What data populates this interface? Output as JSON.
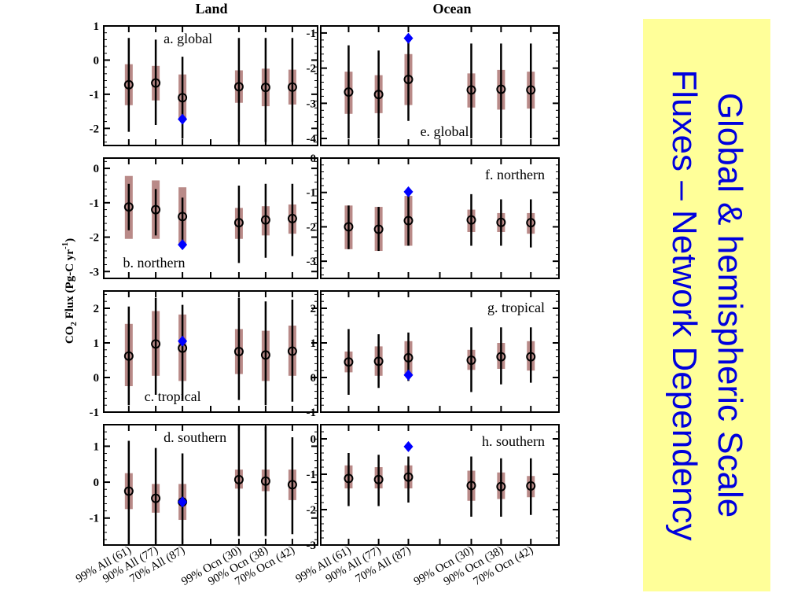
{
  "slide": {
    "title_lines": [
      "Global & hemispheric Scale",
      "Fluxes – Network Dependency"
    ],
    "title_color": "#0000dd",
    "title_bg": "#ffff99"
  },
  "chart_data": {
    "type": "errorbar-panels",
    "column_titles": [
      "Land",
      "Ocean"
    ],
    "ylabel_main": "CO",
    "ylabel_sub": "2",
    "ylabel_mid": " Flux (Pg-C yr",
    "ylabel_sup": "-1",
    "ylabel_end": ")",
    "categories": [
      "99% All (61)",
      "90% All (77)",
      "70% All (87)",
      "99% Ocn (30)",
      "90% Ocn (38)",
      "70% Ocn (42)"
    ],
    "colors": {
      "whisker": "#000000",
      "box": "#b98a88",
      "diamond": "#0000ff"
    },
    "panels": [
      {
        "label": "a. global",
        "label_pos": "top-left",
        "col": 0,
        "row": 0,
        "yticks": [
          1,
          0,
          -1,
          -2
        ],
        "ylim": [
          -2.5,
          1.0
        ],
        "points": [
          {
            "mean": -0.72,
            "box": [
              -1.32,
              -0.12
            ],
            "whisker": [
              -2.1,
              0.65
            ]
          },
          {
            "mean": -0.67,
            "box": [
              -1.18,
              -0.17
            ],
            "whisker": [
              -1.9,
              0.6
            ]
          },
          {
            "mean": -1.1,
            "box": [
              -1.75,
              -0.42
            ],
            "whisker": [
              -2.3,
              0.1
            ]
          },
          {
            "mean": -0.78,
            "box": [
              -1.25,
              -0.3
            ],
            "whisker": [
              -2.4,
              0.65
            ]
          },
          {
            "mean": -0.8,
            "box": [
              -1.35,
              -0.25
            ],
            "whisker": [
              -2.4,
              0.65
            ]
          },
          {
            "mean": -0.79,
            "box": [
              -1.3,
              -0.28
            ],
            "whisker": [
              -2.4,
              0.65
            ]
          }
        ],
        "diamonds": [
          {
            "index": 2,
            "value": -1.73
          }
        ]
      },
      {
        "label": "b. northern",
        "label_pos": "bottom-left",
        "col": 0,
        "row": 1,
        "yticks": [
          0,
          -1,
          -2,
          -3
        ],
        "ylim": [
          -3.2,
          0.3
        ],
        "points": [
          {
            "mean": -1.12,
            "box": [
              -2.05,
              -0.22
            ],
            "whisker": [
              -1.8,
              -0.45
            ]
          },
          {
            "mean": -1.2,
            "box": [
              -2.05,
              -0.35
            ],
            "whisker": [
              -1.95,
              -0.6
            ]
          },
          {
            "mean": -1.4,
            "box": [
              -2.2,
              -0.55
            ],
            "whisker": [
              -2.1,
              -0.85
            ]
          },
          {
            "mean": -1.58,
            "box": [
              -2.05,
              -1.15
            ],
            "whisker": [
              -2.75,
              -0.5
            ]
          },
          {
            "mean": -1.5,
            "box": [
              -1.95,
              -1.1
            ],
            "whisker": [
              -2.6,
              -0.45
            ]
          },
          {
            "mean": -1.46,
            "box": [
              -1.9,
              -1.05
            ],
            "whisker": [
              -2.55,
              -0.45
            ]
          }
        ],
        "diamonds": [
          {
            "index": 2,
            "value": -2.22
          }
        ]
      },
      {
        "label": "c. tropical",
        "label_pos": "bottom-left",
        "col": 0,
        "row": 2,
        "yticks": [
          2,
          1,
          0,
          -1
        ],
        "ylim": [
          -1.0,
          2.5
        ],
        "points": [
          {
            "mean": 0.62,
            "box": [
              -0.25,
              1.55
            ],
            "whisker": [
              -0.8,
              2.05
            ]
          },
          {
            "mean": 0.97,
            "box": [
              0.05,
              1.92
            ],
            "whisker": [
              -0.5,
              2.3
            ]
          },
          {
            "mean": 0.85,
            "box": [
              -0.1,
              1.82
            ],
            "whisker": [
              -0.65,
              2.1
            ]
          },
          {
            "mean": 0.75,
            "box": [
              0.1,
              1.4
            ],
            "whisker": [
              -0.65,
              2.3
            ]
          },
          {
            "mean": 0.65,
            "box": [
              -0.1,
              1.35
            ],
            "whisker": [
              -0.8,
              2.2
            ]
          },
          {
            "mean": 0.76,
            "box": [
              0.05,
              1.5
            ],
            "whisker": [
              -0.7,
              2.25
            ]
          }
        ],
        "diamonds": [
          {
            "index": 2,
            "value": 1.05
          }
        ]
      },
      {
        "label": "d. southern",
        "label_pos": "top-left",
        "col": 0,
        "row": 3,
        "yticks": [
          1,
          0,
          -1
        ],
        "ylim": [
          -1.75,
          1.6
        ],
        "points": [
          {
            "mean": -0.25,
            "box": [
              -0.75,
              0.25
            ],
            "whisker": [
              -1.72,
              1.15
            ]
          },
          {
            "mean": -0.45,
            "box": [
              -0.85,
              -0.05
            ],
            "whisker": [
              -1.72,
              0.95
            ]
          },
          {
            "mean": -0.55,
            "box": [
              -1.05,
              -0.05
            ],
            "whisker": [
              -1.72,
              0.8
            ]
          },
          {
            "mean": 0.07,
            "box": [
              -0.18,
              0.35
            ],
            "whisker": [
              -1.5,
              1.6
            ]
          },
          {
            "mean": 0.03,
            "box": [
              -0.25,
              0.35
            ],
            "whisker": [
              -1.5,
              1.55
            ]
          },
          {
            "mean": -0.07,
            "box": [
              -0.5,
              0.35
            ],
            "whisker": [
              -1.45,
              1.25
            ]
          }
        ],
        "diamonds": [
          {
            "index": 2,
            "value": -0.55
          }
        ]
      },
      {
        "label": "e. global",
        "label_pos": "bottom-center",
        "col": 1,
        "row": 0,
        "yticks": [
          -1,
          -2,
          -3,
          -4
        ],
        "ylim": [
          -4.2,
          -0.8
        ],
        "points": [
          {
            "mean": -2.68,
            "box": [
              -3.3,
              -2.1
            ],
            "whisker": [
              -4.0,
              -1.35
            ]
          },
          {
            "mean": -2.75,
            "box": [
              -3.28,
              -2.2
            ],
            "whisker": [
              -4.0,
              -1.5
            ]
          },
          {
            "mean": -2.32,
            "box": [
              -3.05,
              -1.6
            ],
            "whisker": [
              -3.5,
              -1.25
            ]
          },
          {
            "mean": -2.62,
            "box": [
              -3.12,
              -2.15
            ],
            "whisker": [
              -4.0,
              -1.3
            ]
          },
          {
            "mean": -2.6,
            "box": [
              -3.18,
              -2.05
            ],
            "whisker": [
              -4.0,
              -1.3
            ]
          },
          {
            "mean": -2.62,
            "box": [
              -3.15,
              -2.1
            ],
            "whisker": [
              -4.0,
              -1.3
            ]
          }
        ],
        "diamonds": [
          {
            "index": 2,
            "value": -1.15
          }
        ]
      },
      {
        "label": "f. northern",
        "label_pos": "top-right",
        "col": 1,
        "row": 1,
        "yticks": [
          0,
          -1,
          -2,
          -3
        ],
        "ylim": [
          -3.5,
          0.0
        ],
        "points": [
          {
            "mean": -2.0,
            "box": [
              -2.65,
              -1.38
            ],
            "whisker": [
              -2.65,
              -1.38
            ]
          },
          {
            "mean": -2.07,
            "box": [
              -2.7,
              -1.42
            ],
            "whisker": [
              -2.7,
              -1.42
            ]
          },
          {
            "mean": -1.82,
            "box": [
              -2.55,
              -1.1
            ],
            "whisker": [
              -2.55,
              -1.1
            ]
          },
          {
            "mean": -1.8,
            "box": [
              -2.15,
              -1.5
            ],
            "whisker": [
              -2.55,
              -1.05
            ]
          },
          {
            "mean": -1.87,
            "box": [
              -2.15,
              -1.6
            ],
            "whisker": [
              -2.55,
              -1.2
            ]
          },
          {
            "mean": -1.88,
            "box": [
              -2.2,
              -1.6
            ],
            "whisker": [
              -2.6,
              -1.2
            ]
          }
        ],
        "diamonds": [
          {
            "index": 2,
            "value": -0.98
          }
        ]
      },
      {
        "label": "g. tropical",
        "label_pos": "top-right",
        "col": 1,
        "row": 2,
        "yticks": [
          2,
          1,
          0,
          -1
        ],
        "ylim": [
          -1.0,
          2.5
        ],
        "points": [
          {
            "mean": 0.45,
            "box": [
              0.15,
              0.75
            ],
            "whisker": [
              -0.5,
              1.4
            ]
          },
          {
            "mean": 0.47,
            "box": [
              0.05,
              0.9
            ],
            "whisker": [
              -0.3,
              1.25
            ]
          },
          {
            "mean": 0.57,
            "box": [
              0.05,
              1.05
            ],
            "whisker": [
              -0.1,
              1.3
            ]
          },
          {
            "mean": 0.5,
            "box": [
              0.22,
              0.8
            ],
            "whisker": [
              -0.42,
              1.45
            ]
          },
          {
            "mean": 0.6,
            "box": [
              0.25,
              1.0
            ],
            "whisker": [
              -0.2,
              1.45
            ]
          },
          {
            "mean": 0.6,
            "box": [
              0.2,
              1.05
            ],
            "whisker": [
              -0.15,
              1.45
            ]
          }
        ],
        "diamonds": [
          {
            "index": 2,
            "value": 0.07
          }
        ]
      },
      {
        "label": "h. southern",
        "label_pos": "top-right",
        "col": 1,
        "row": 3,
        "yticks": [
          0,
          -1,
          -2,
          -3
        ],
        "ylim": [
          -3.0,
          0.4
        ],
        "points": [
          {
            "mean": -1.12,
            "box": [
              -1.4,
              -0.75
            ],
            "whisker": [
              -1.9,
              -0.4
            ]
          },
          {
            "mean": -1.15,
            "box": [
              -1.4,
              -0.8
            ],
            "whisker": [
              -1.9,
              -0.45
            ]
          },
          {
            "mean": -1.08,
            "box": [
              -1.4,
              -0.75
            ],
            "whisker": [
              -1.8,
              -0.5
            ]
          },
          {
            "mean": -1.32,
            "box": [
              -1.75,
              -0.9
            ],
            "whisker": [
              -2.2,
              -0.5
            ]
          },
          {
            "mean": -1.35,
            "box": [
              -1.7,
              -0.95
            ],
            "whisker": [
              -2.2,
              -0.55
            ]
          },
          {
            "mean": -1.33,
            "box": [
              -1.65,
              -1.05
            ],
            "whisker": [
              -2.15,
              -0.55
            ]
          }
        ],
        "diamonds": [
          {
            "index": 2,
            "value": -0.22
          }
        ]
      }
    ]
  }
}
